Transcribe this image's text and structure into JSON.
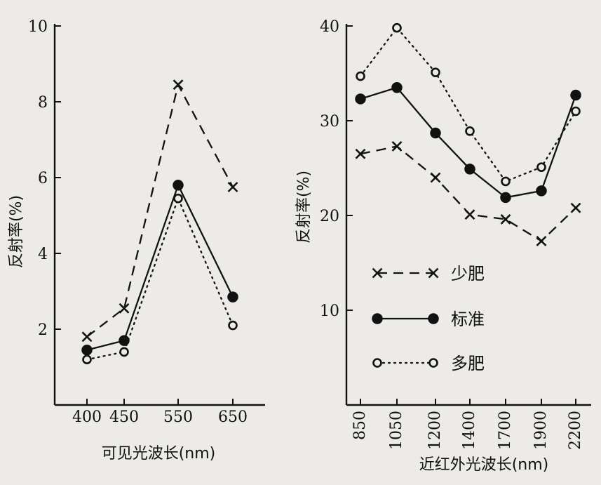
{
  "colors": {
    "ink": "#111111",
    "paper": "#ecebe7"
  },
  "chart_data": [
    {
      "type": "line",
      "xlabel": "可见光波长(nm)",
      "ylabel": "反射率(%)",
      "categories": [
        "400",
        "450",
        "550",
        "650"
      ],
      "ylim": [
        0,
        10
      ],
      "yticks": [
        "2",
        "4",
        "6",
        "8",
        "10"
      ],
      "grid": false,
      "series": [
        {
          "name": "少肥",
          "style": "dashed",
          "marker": "cross",
          "values": [
            1.8,
            2.55,
            8.45,
            5.75
          ]
        },
        {
          "name": "标准",
          "style": "solid",
          "marker": "filled-circle",
          "values": [
            1.45,
            1.7,
            5.8,
            2.85
          ]
        },
        {
          "name": "多肥",
          "style": "dotted",
          "marker": "open-circle",
          "values": [
            1.2,
            1.4,
            5.45,
            2.1
          ]
        }
      ]
    },
    {
      "type": "line",
      "xlabel": "近红外光波长(nm)",
      "ylabel": "反射率(%)",
      "categories": [
        "850",
        "1050",
        "1200",
        "1400",
        "1700",
        "1900",
        "2200"
      ],
      "ylim": [
        0,
        40
      ],
      "yticks": [
        "10",
        "20",
        "30",
        "40"
      ],
      "grid": false,
      "legend": "left-center",
      "series": [
        {
          "name": "少肥",
          "style": "dashed",
          "marker": "cross",
          "values": [
            26.5,
            27.3,
            24.0,
            20.1,
            19.6,
            17.3,
            20.8
          ]
        },
        {
          "name": "标准",
          "style": "solid",
          "marker": "filled-circle",
          "values": [
            32.3,
            33.5,
            28.7,
            24.9,
            21.9,
            22.6,
            32.7
          ]
        },
        {
          "name": "多肥",
          "style": "dotted",
          "marker": "open-circle",
          "values": [
            34.7,
            39.8,
            35.1,
            28.9,
            23.6,
            25.1,
            31.0
          ]
        }
      ]
    }
  ]
}
